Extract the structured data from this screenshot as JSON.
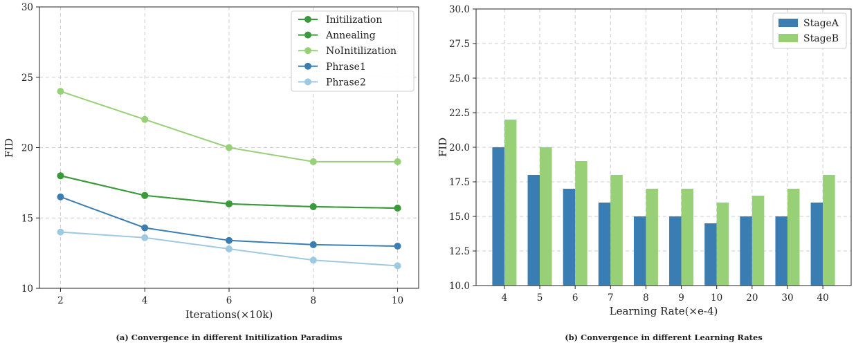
{
  "chart_data": [
    {
      "type": "line",
      "caption": "(a) Convergence in different Initilization Paradims",
      "xlabel": "Iterations(×10k)",
      "ylabel": "FID",
      "x": [
        2,
        4,
        6,
        8,
        10
      ],
      "x_ticks": [
        "2",
        "4",
        "6",
        "8",
        "10"
      ],
      "xlim": [
        1.5,
        10.5
      ],
      "ylim": [
        10,
        30
      ],
      "y_ticks": [
        "10",
        "15",
        "20",
        "25",
        "30"
      ],
      "grid": true,
      "legend_position": "top-right",
      "series": [
        {
          "name": "Initilization",
          "color": "#3a9a3a",
          "values": [
            18.0,
            16.6,
            16.0,
            15.8,
            15.7
          ]
        },
        {
          "name": "Annealing",
          "color": "#3a9a3a",
          "values": [
            18.0,
            16.6,
            16.0,
            15.8,
            15.7
          ]
        },
        {
          "name": "NoInitilization",
          "color": "#98d078",
          "values": [
            24.0,
            22.0,
            20.0,
            19.0,
            19.0
          ]
        },
        {
          "name": "Phrase1",
          "color": "#3a7db2",
          "values": [
            16.5,
            14.3,
            13.4,
            13.1,
            13.0
          ]
        },
        {
          "name": "Phrase2",
          "color": "#9ec9e0",
          "values": [
            14.0,
            13.6,
            12.8,
            12.0,
            11.6
          ]
        }
      ]
    },
    {
      "type": "bar",
      "caption": "(b) Convergence in different Learning Rates",
      "xlabel": "Learning Rate(×e-4)",
      "ylabel": "FID",
      "categories": [
        "4",
        "5",
        "6",
        "7",
        "8",
        "9",
        "10",
        "20",
        "30",
        "40"
      ],
      "ylim": [
        10,
        30
      ],
      "y_ticks": [
        "10.0",
        "12.5",
        "15.0",
        "17.5",
        "20.0",
        "22.5",
        "25.0",
        "27.5",
        "30.0"
      ],
      "grid": true,
      "legend_position": "top-right",
      "series": [
        {
          "name": "StageA",
          "color": "#3a7db2",
          "values": [
            20.0,
            18.0,
            17.0,
            16.0,
            15.0,
            15.0,
            14.5,
            15.0,
            15.0,
            16.0
          ]
        },
        {
          "name": "StageB",
          "color": "#98d078",
          "values": [
            22.0,
            20.0,
            19.0,
            18.0,
            17.0,
            17.0,
            16.0,
            16.5,
            17.0,
            18.0
          ]
        }
      ]
    }
  ]
}
